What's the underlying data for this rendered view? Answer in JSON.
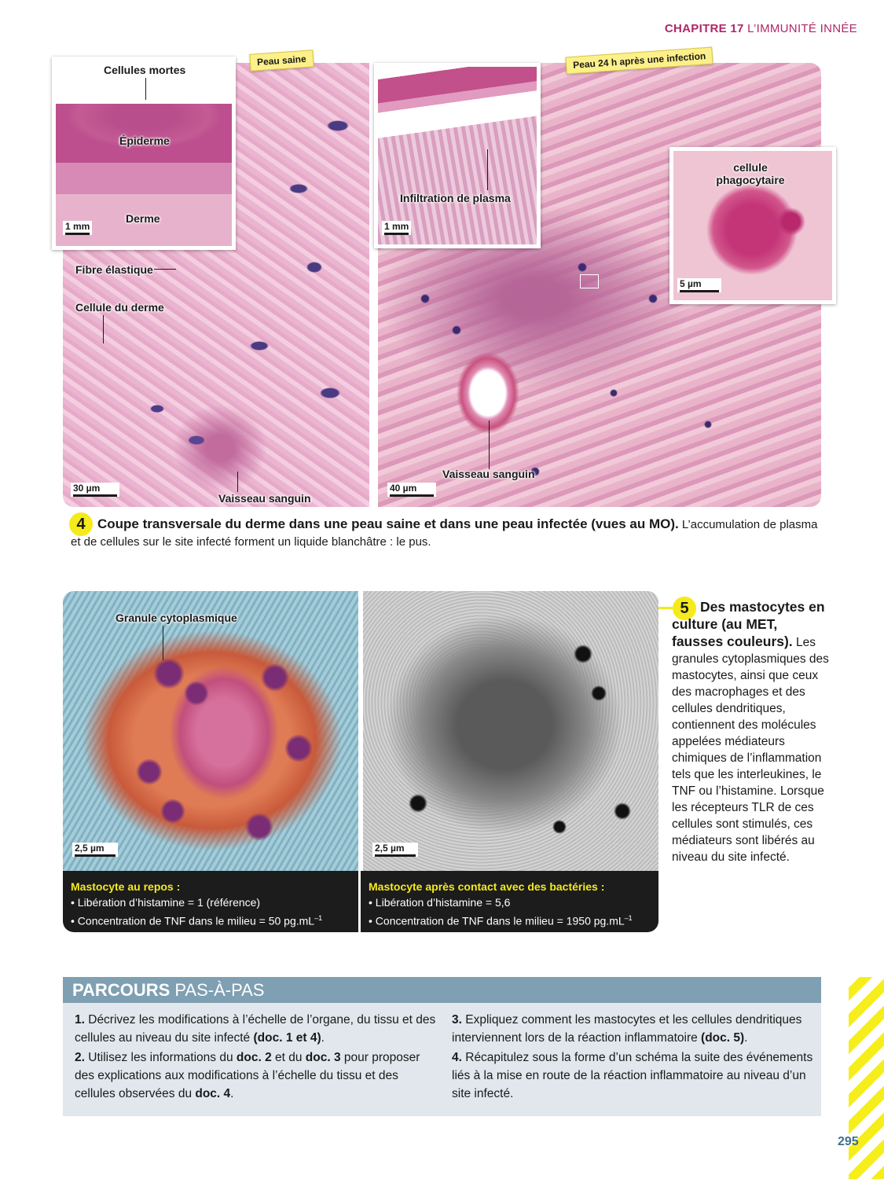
{
  "header": {
    "chapter": "CHAPITRE 17",
    "title": "L’IMMUNITÉ INNÉE"
  },
  "doc4": {
    "number": "4",
    "tag_healthy": "Peau saine",
    "tag_infected": "Peau 24 h après une infection",
    "healthy": {
      "inset_labels": {
        "dead_cells": "Cellules mortes",
        "epidermis": "Épiderme",
        "dermis": "Derme"
      },
      "inset_scale": "1 mm",
      "labels": {
        "elastic_fiber": "Fibre élastique",
        "dermis_cell": "Cellule du derme",
        "vessel": "Vaisseau sanguin"
      },
      "scale": "30 µm"
    },
    "infected": {
      "inset_label": "Infiltration de plasma",
      "inset_scale": "1 mm",
      "phago_label": "cellule phagocytaire",
      "phago_scale": "5 µm",
      "vessel": "Vaisseau sanguin",
      "scale": "40 µm"
    },
    "caption_bold": "Coupe transversale du derme dans une peau saine et dans une peau infectée (vues au MO).",
    "caption_text": " L’accumulation de plasma et de cellules sur le site infecté forment un liquide blanchâtre : le pus."
  },
  "doc5": {
    "number": "5",
    "granule_label": "Granule cytoplasmique",
    "scale1": "2,5 µm",
    "scale2": "2,5 µm",
    "rest": {
      "head": "Mastocyte au repos :",
      "line1": "• Libération d’histamine = 1 (référence)",
      "line2": "• Concentration de TNF dans le milieu = 50 pg.mL",
      "sup": "–1"
    },
    "contact": {
      "head": "Mastocyte après contact avec des bactéries :",
      "line1": "• Libération d’histamine = 5,6",
      "line2": "• Concentration de TNF dans le milieu = 1950 pg.mL",
      "sup": "–1"
    },
    "caption_bold": "Des mastocytes en culture (au MET, fausses couleurs).",
    "caption_text": " Les granules cytoplasmiques des mastocytes, ainsi que ceux des macrophages et des cellules dendritiques, contiennent des molécules appelées médiateurs chimiques de l’inflammation tels que les interleukines, le TNF ou l’histamine. Lorsque les récepteurs TLR de ces cellules sont stimulés, ces médiateurs sont libérés au niveau du site infecté."
  },
  "parcours": {
    "title_bold": "PARCOURS",
    "title_rest": " PAS-À-PAS",
    "q1": {
      "n": "1.",
      "a": " Décrivez les modifications à l’échelle de l’organe, du tissu et des cellules au niveau du site infecté ",
      "b": "(doc. 1 et 4)",
      "c": "."
    },
    "q2": {
      "n": "2.",
      "a": " Utilisez les informations du ",
      "b": "doc. 2",
      "c": " et du ",
      "d": "doc. 3",
      "e": " pour proposer des explications aux modifications à l’échelle du tissu et des cellules observées du ",
      "f": "doc. 4",
      "g": "."
    },
    "q3": {
      "n": "3.",
      "a": " Expliquez comment les mastocytes et les cellules dendritiques interviennent lors de la réaction inflammatoire ",
      "b": "(doc. 5)",
      "c": "."
    },
    "q4": {
      "n": "4.",
      "a": " Récapitulez sous la forme d’un schéma la suite des événements liés à la mise en route de la réaction inflammatoire au niveau d’un site infecté."
    }
  },
  "page_number": "295"
}
